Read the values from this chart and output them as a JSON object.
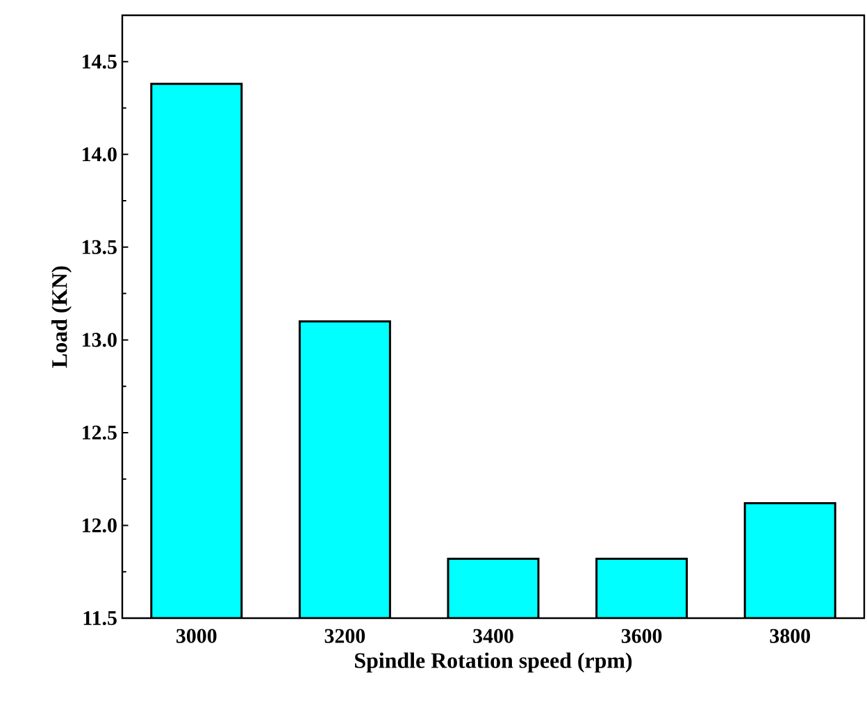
{
  "chart_data": {
    "type": "bar",
    "xlabel": "Spindle Rotation speed (rpm)",
    "ylabel": "Load (KN)",
    "categories": [
      "3000",
      "3200",
      "3400",
      "3600",
      "3800"
    ],
    "values": [
      14.38,
      13.1,
      11.82,
      11.82,
      12.12
    ],
    "color": "#00ffff",
    "ylim": [
      11.5,
      14.75
    ],
    "yticks": [
      11.5,
      {
        "value": 12,
        "label": "12.0"
      },
      12.5,
      {
        "value": 13,
        "label": "13.0"
      },
      13.5,
      {
        "value": 14,
        "label": "14.0"
      },
      14.5
    ]
  }
}
